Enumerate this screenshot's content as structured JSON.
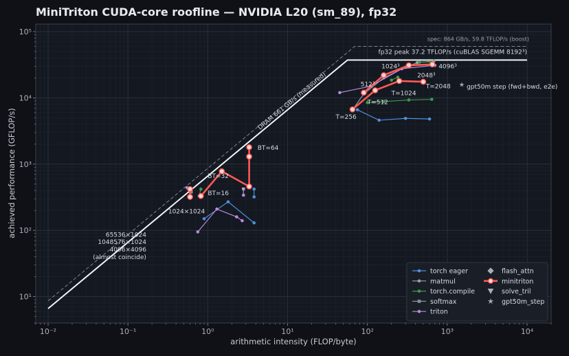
{
  "title": "MiniTriton CUDA-core roofline — NVIDIA L20 (sm_89), fp32",
  "chart_data": {
    "type": "scatter",
    "xlabel": "arithmetic intensity (FLOP/byte)",
    "ylabel": "achieved performance (GFLOP/s)",
    "x_scale": "log",
    "y_scale": "log",
    "xlim": [
      0.007,
      20000
    ],
    "ylim": [
      4,
      130000
    ],
    "x_tick_labels": [
      "10⁻²",
      "10⁻¹",
      "10⁰",
      "10¹",
      "10²",
      "10³",
      "10⁴"
    ],
    "x_tick_values": [
      0.01,
      0.1,
      1,
      10,
      100,
      1000,
      10000
    ],
    "y_tick_labels": [
      "10¹",
      "10²",
      "10³",
      "10⁴",
      "10⁵"
    ],
    "y_tick_values": [
      10,
      100,
      1000,
      10000,
      100000
    ],
    "grid": true,
    "legend_position": "bottom-right",
    "rooflines": {
      "measured": {
        "bandwidth_gbs": 661,
        "peak_gflops": 37200,
        "label_bw": "DRAM 661 GB/s (measured)",
        "label_peak": "fp32 peak 37.2 TFLOP/s (cuBLAS SGEMM 8192³)"
      },
      "spec": {
        "bandwidth_gbs": 864,
        "peak_gflops": 59800,
        "label": "spec: 864 GB/s, 59.8 TFLOP/s (boost)"
      },
      "x_range": [
        0.01,
        10000
      ]
    },
    "series": [
      {
        "name": "torch eager",
        "color": "#4f8fdb",
        "marker": "circle",
        "lines": [
          [
            [
              75,
              6600
            ],
            [
              140,
              4600
            ],
            [
              300,
              4900
            ],
            [
              600,
              4800
            ]
          ],
          [
            [
              0.9,
              150
            ],
            [
              1.8,
              270
            ],
            [
              3.8,
              130
            ]
          ],
          [
            [
              3.8,
              420
            ],
            [
              3.8,
              320
            ]
          ]
        ]
      },
      {
        "name": "matmul",
        "color": "#9aa0aa",
        "marker": "circle",
        "lines": [
          [
            [
              65,
              6600
            ],
            [
              90,
              11500
            ],
            [
              160,
              20000
            ],
            [
              300,
              29000
            ],
            [
              420,
              34000
            ],
            [
              680,
              36000
            ]
          ]
        ]
      },
      {
        "name": "torch.compile",
        "color": "#3e9a4e",
        "marker": "circle",
        "lines": [
          [
            [
              100,
              8500
            ],
            [
              160,
              8800
            ],
            [
              330,
              9300
            ],
            [
              640,
              9500
            ]
          ],
          [
            [
              200,
              18500
            ],
            [
              240,
              20500
            ]
          ],
          [
            [
              450,
              34500
            ],
            [
              620,
              35000
            ]
          ],
          [
            [
              0.82,
              420
            ],
            [
              0.78,
              330
            ]
          ]
        ]
      },
      {
        "name": "softmax",
        "color": "#8a8fa0",
        "marker": "square",
        "lines": [
          [
            [
              0.58,
              420
            ],
            [
              0.62,
              380
            ]
          ]
        ]
      },
      {
        "name": "triton",
        "color": "#b58be0",
        "marker": "circle",
        "lines": [
          [
            [
              45,
              12000
            ],
            [
              110,
              15000
            ],
            [
              270,
              27500
            ],
            [
              700,
              31000
            ]
          ],
          [
            [
              0.75,
              95
            ],
            [
              1.3,
              210
            ],
            [
              2.3,
              160
            ],
            [
              2.7,
              140
            ]
          ],
          [
            [
              2.8,
              420
            ],
            [
              2.8,
              340
            ]
          ],
          [
            [
              0.55,
              440
            ],
            [
              0.6,
              420
            ]
          ]
        ]
      },
      {
        "name": "flash_attn",
        "color": "#a9aeb8",
        "marker": "diamond",
        "lines": [
          [
            [
              0.6,
              400
            ]
          ]
        ]
      },
      {
        "name": "minitriton",
        "color": "#ff5a55",
        "marker": "circle",
        "lines": [
          [
            [
              65,
              6700
            ],
            [
              125,
              13000
            ],
            [
              250,
              18000
            ],
            [
              500,
              17500
            ]
          ],
          [
            [
              90,
              12000
            ],
            [
              160,
              22000
            ],
            [
              330,
              31000
            ],
            [
              650,
              32000
            ]
          ],
          [
            [
              0.6,
              420
            ],
            [
              0.6,
              320
            ]
          ],
          [
            [
              0.82,
              330
            ],
            [
              1.5,
              780
            ],
            [
              3.3,
              460
            ],
            [
              3.3,
              1800
            ],
            [
              3.3,
              1300
            ]
          ]
        ]
      },
      {
        "name": "solve_tril",
        "color": "#aab0ba",
        "marker": "triangle-down",
        "lines": [
          [
            [
              2.8,
              420
            ]
          ]
        ]
      },
      {
        "name": "gpt50m_step",
        "color": "#a9aeb8",
        "marker": "star",
        "lines": [
          [
            [
              1520,
              15800
            ]
          ]
        ]
      }
    ],
    "annotations": [
      {
        "text": "1024³",
        "x": 150,
        "y": 28000
      },
      {
        "text": "4096³",
        "x": 780,
        "y": 28000
      },
      {
        "text": "2048³",
        "x": 420,
        "y": 20500
      },
      {
        "text": "512³",
        "x": 82,
        "y": 15000
      },
      {
        "text": "T=1024",
        "x": 200,
        "y": 11000
      },
      {
        "text": "T=2048",
        "x": 540,
        "y": 14000
      },
      {
        "text": "T=512",
        "x": 100,
        "y": 8000
      },
      {
        "text": "T=256",
        "x": 40,
        "y": 4800
      },
      {
        "text": "gpt50m step (fwd+bwd, e2e)",
        "x": 1750,
        "y": 13800
      },
      {
        "text": "BT=64",
        "x": 4.2,
        "y": 1650
      },
      {
        "text": "BT=32",
        "x": 1.0,
        "y": 620
      },
      {
        "text": "BT=16",
        "x": 1.0,
        "y": 340
      },
      {
        "text": "1024×1024",
        "x": 0.32,
        "y": 180
      },
      {
        "text": "65536×1024",
        "x": 0.17,
        "y": 80
      },
      {
        "text": "1048576×1024",
        "x": 0.17,
        "y": 62
      },
      {
        "text": "4096×4096",
        "x": 0.17,
        "y": 48
      },
      {
        "text": "(almost coincide)",
        "x": 0.17,
        "y": 37
      }
    ]
  }
}
